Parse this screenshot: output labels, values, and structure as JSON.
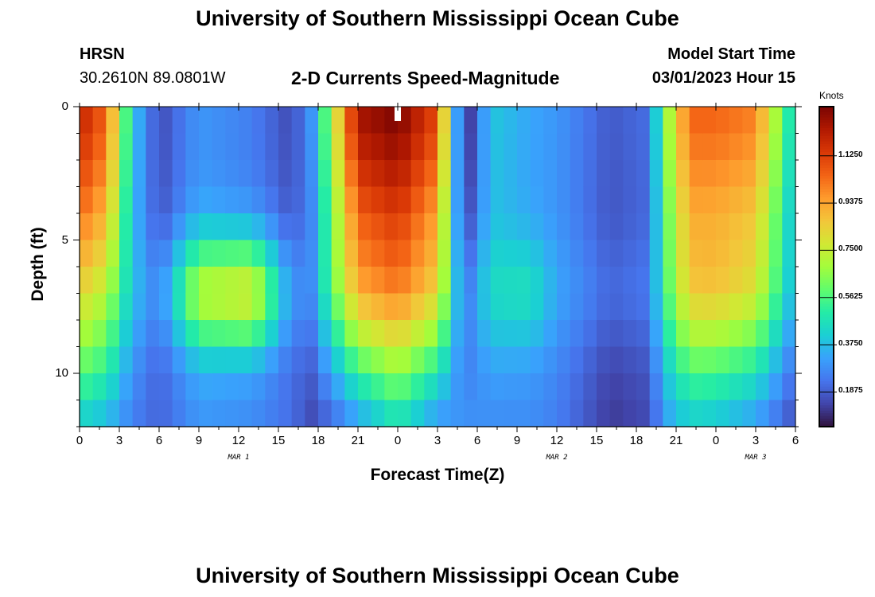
{
  "header": {
    "title": "University of Southern Mississippi Ocean Cube",
    "station": "HRSN",
    "coords": "30.2610N  89.0801W",
    "model_start_label": "Model Start Time",
    "model_start_value": "03/01/2023 Hour 15",
    "footer_title": "University of Southern Mississippi Ocean Cube"
  },
  "chart_data": {
    "type": "heatmap",
    "title": "2-D Currents Speed-Magnitude",
    "xlabel": "Forecast Time(Z)",
    "ylabel": "Depth (ft)",
    "colorbar_label": "Knots",
    "x_tick_labels": [
      "0",
      "3",
      "6",
      "9",
      "12",
      "15",
      "18",
      "21",
      "0",
      "3",
      "6",
      "9",
      "12",
      "15",
      "18",
      "21",
      "0",
      "3",
      "6"
    ],
    "date_labels": [
      "MAR 1",
      "MAR 2",
      "MAR 3"
    ],
    "date_label_hours": [
      12,
      36,
      51
    ],
    "y_tick_labels": [
      "0",
      "5",
      "10"
    ],
    "y_tick_values": [
      0,
      5,
      10
    ],
    "xlim_hours": [
      0,
      54
    ],
    "ylim_ft": [
      0,
      12
    ],
    "colorbar_ticks": [
      "0.1875",
      "0.3750",
      "0.5625",
      "0.7500",
      "0.9375",
      "1.1250"
    ],
    "colorbar_range": [
      0.05,
      1.32
    ],
    "colormap": [
      "#30123b",
      "#4145ab",
      "#4675ed",
      "#39a2fc",
      "#1bcfd4",
      "#24eca6",
      "#61fc6c",
      "#a4fc3b",
      "#d1e834",
      "#f3c63a",
      "#fe9b2d",
      "#f36315",
      "#d93806",
      "#b11901",
      "#7a0402"
    ],
    "marker_hour": 24,
    "time_hours": [
      0,
      1,
      2,
      3,
      4,
      5,
      6,
      7,
      8,
      9,
      10,
      11,
      12,
      13,
      14,
      15,
      16,
      17,
      18,
      19,
      20,
      21,
      22,
      23,
      24,
      25,
      26,
      27,
      28,
      29,
      30,
      31,
      32,
      33,
      34,
      35,
      36,
      37,
      38,
      39,
      40,
      41,
      42,
      43,
      44,
      45,
      46,
      47,
      48,
      49,
      50,
      51,
      52,
      53,
      54
    ],
    "depth_levels_ft": [
      0,
      1,
      2,
      3,
      4,
      5,
      6,
      7,
      8,
      9,
      10,
      11,
      12
    ],
    "profile_key_hours": [
      0,
      2,
      4,
      6,
      9,
      13,
      16,
      17.5,
      19,
      21,
      24,
      27,
      29,
      31,
      34,
      36,
      40,
      43,
      44,
      46,
      48,
      51,
      54
    ],
    "profile_surface_knots": [
      1.2,
      1.05,
      0.4,
      0.15,
      0.3,
      0.25,
      0.15,
      0.3,
      0.7,
      1.25,
      1.32,
      1.1,
      0.05,
      0.4,
      0.33,
      0.3,
      0.18,
      0.22,
      0.6,
      1.05,
      1.05,
      1.0,
      0.4
    ],
    "profile_bottom_knots": [
      0.4,
      0.35,
      0.25,
      0.2,
      0.3,
      0.28,
      0.22,
      0.15,
      0.2,
      0.3,
      0.45,
      0.28,
      0.3,
      0.28,
      0.28,
      0.25,
      0.12,
      0.15,
      0.3,
      0.4,
      0.38,
      0.3,
      0.15
    ],
    "profile_mid_peak_knots": [
      0.0,
      0.0,
      0.05,
      0.08,
      0.4,
      0.5,
      0.1,
      0.05,
      0.1,
      0.1,
      0.08,
      0.1,
      0.05,
      0.1,
      0.15,
      0.05,
      0.05,
      0.05,
      0.05,
      0.1,
      0.12,
      0.1,
      0.05
    ],
    "profile_mid_peak_depth_ft": 7.0
  }
}
